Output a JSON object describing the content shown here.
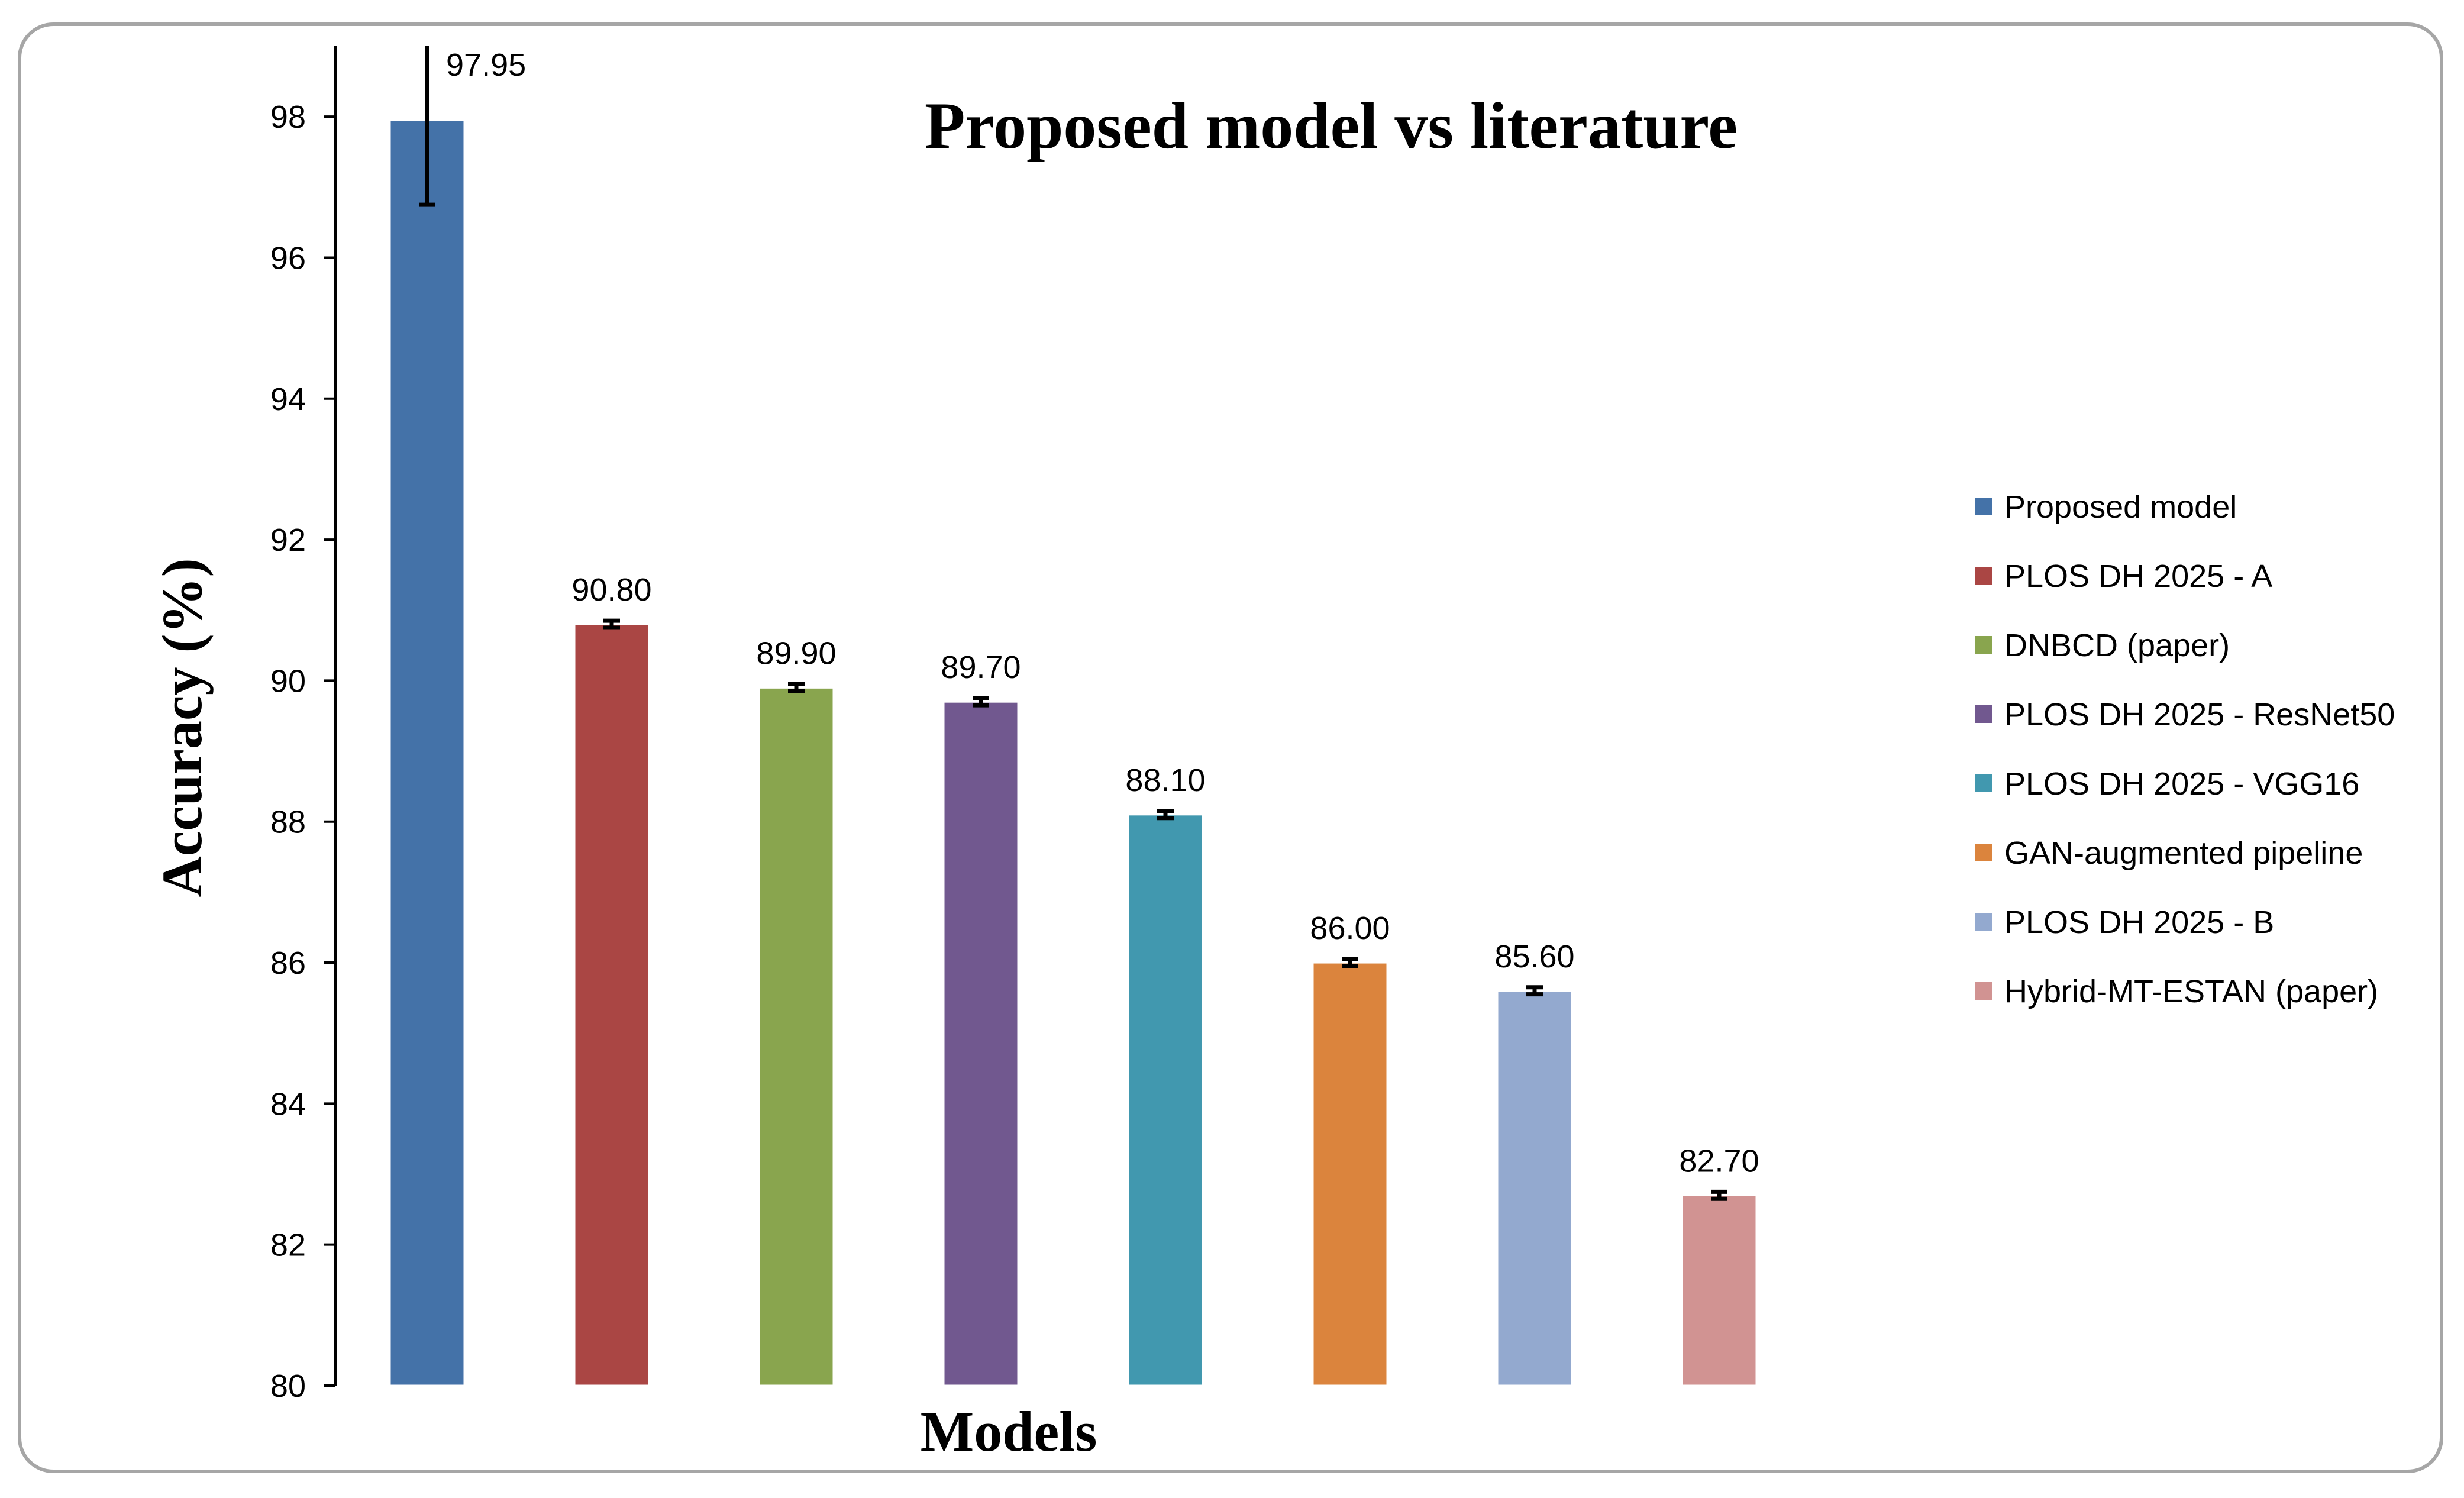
{
  "chart_data": {
    "type": "bar",
    "title": "Proposed model vs literature",
    "xlabel": "Models",
    "ylabel": "Accuracy (%)",
    "ylim": [
      80,
      99
    ],
    "yticks": [
      "80",
      "82",
      "84",
      "86",
      "88",
      "90",
      "92",
      "94",
      "96",
      "98"
    ],
    "grid": false,
    "legend_position": "right",
    "series": [
      {
        "name": "Proposed model",
        "value": 97.95,
        "label": "97.95",
        "error": [
          96.75,
          99.1
        ],
        "color": "#4472a8"
      },
      {
        "name": "PLOS DH 2025 - A",
        "value": 90.8,
        "label": "90.80",
        "error": [
          90.75,
          90.85
        ],
        "color": "#aa4644"
      },
      {
        "name": "DNBCD (paper)",
        "value": 89.9,
        "label": "89.90",
        "error": [
          89.85,
          89.95
        ],
        "color": "#89a54e"
      },
      {
        "name": "PLOS DH 2025 - ResNet50",
        "value": 89.7,
        "label": "89.70",
        "error": [
          89.65,
          89.75
        ],
        "color": "#71588f"
      },
      {
        "name": "PLOS DH 2025 - VGG16",
        "value": 88.1,
        "label": "88.10",
        "error": [
          88.05,
          88.15
        ],
        "color": "#4198af"
      },
      {
        "name": "GAN-augmented pipeline",
        "value": 86.0,
        "label": "86.00",
        "error": [
          85.95,
          86.05
        ],
        "color": "#db843d"
      },
      {
        "name": "PLOS DH 2025 - B",
        "value": 85.6,
        "label": "85.60",
        "error": [
          85.55,
          85.65
        ],
        "color": "#93a9cf"
      },
      {
        "name": "Hybrid-MT-ESTAN (paper)",
        "value": 82.7,
        "label": "82.70",
        "error": [
          82.65,
          82.75
        ],
        "color": "#d19392"
      }
    ]
  }
}
